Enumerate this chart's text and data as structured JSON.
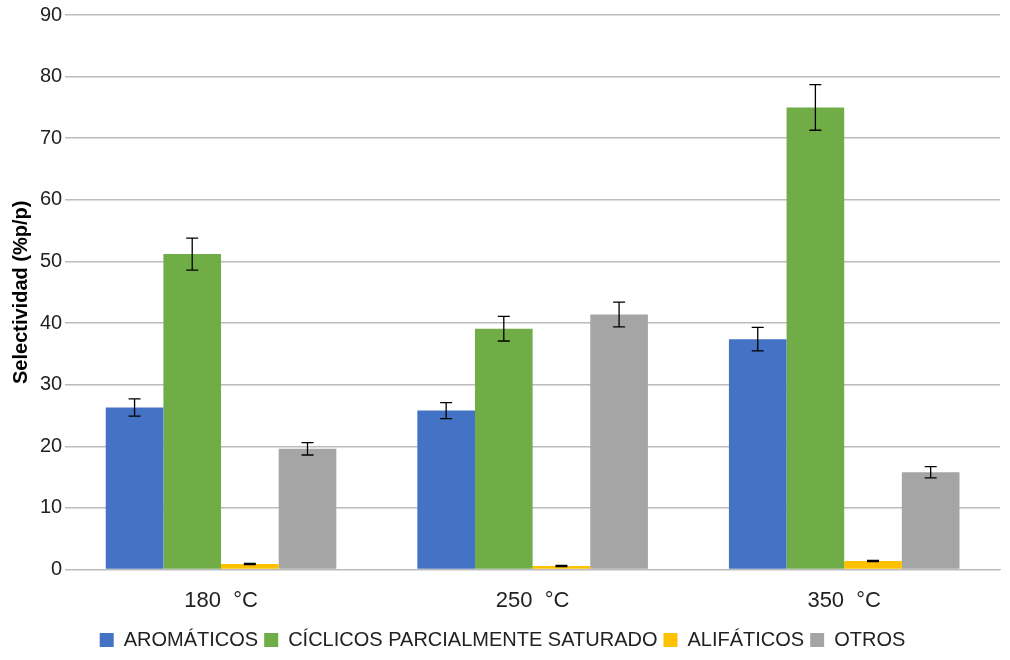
{
  "chart_data": {
    "type": "bar",
    "ylabel": "Selectividad (%p/p)",
    "categories": [
      "180  °C",
      "250  °C",
      "350  °C"
    ],
    "series": [
      {
        "name": "AROMÁTICOS",
        "color": "#4472c4",
        "values": [
          26.3,
          25.8,
          37.4
        ],
        "errors": [
          1.4,
          1.3,
          1.9
        ]
      },
      {
        "name": "CÍCLICOS PARCIALMENTE SATURADO",
        "color": "#70ad47",
        "values": [
          51.2,
          39.1,
          75.0
        ],
        "errors": [
          2.6,
          2.0,
          3.7
        ]
      },
      {
        "name": "ALIFÁTICOS",
        "color": "#ffc000",
        "values": [
          0.9,
          0.6,
          1.4
        ],
        "errors": [
          0.1,
          0.1,
          0.1
        ]
      },
      {
        "name": "OTROS",
        "color": "#a5a5a5",
        "values": [
          19.6,
          41.4,
          15.8
        ],
        "errors": [
          1.0,
          2.0,
          0.9
        ]
      }
    ],
    "ylim": [
      0,
      90
    ],
    "yticks": [
      0,
      10,
      20,
      30,
      40,
      50,
      60,
      70,
      80,
      90
    ],
    "grid": "y",
    "legend": "bottom"
  }
}
